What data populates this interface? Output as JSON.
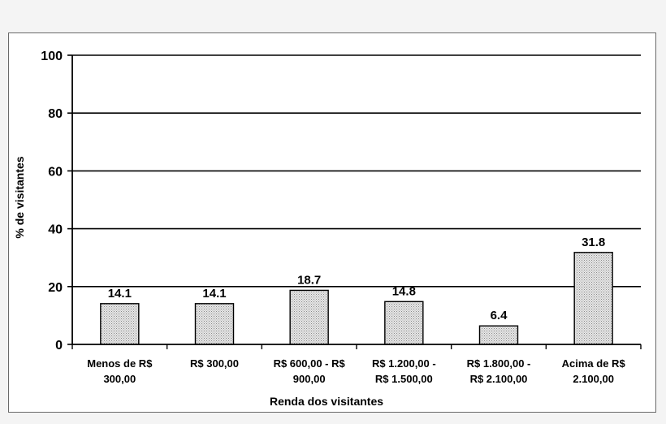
{
  "chart_data": {
    "type": "bar",
    "title": "",
    "xlabel": "Renda dos visitantes",
    "ylabel": "% de visitantes",
    "ylim": [
      0,
      100
    ],
    "yticks": [
      0,
      20,
      40,
      60,
      80,
      100
    ],
    "grid": true,
    "legend": "none",
    "categories": [
      [
        "Menos de R$",
        "300,00"
      ],
      [
        "R$ 300,00"
      ],
      [
        "R$ 600,00 - R$",
        "900,00"
      ],
      [
        "R$ 1.200,00 -",
        "R$ 1.500,00"
      ],
      [
        "R$ 1.800,00 -",
        "R$ 2.100,00"
      ],
      [
        "Acima de R$",
        "2.100,00"
      ]
    ],
    "values": [
      14.1,
      14.1,
      18.7,
      14.8,
      6.4,
      31.8
    ],
    "data_labels": [
      "14.1",
      "14.1",
      "18.7",
      "14.8",
      "6.4",
      "31.8"
    ],
    "colors": {
      "bar_fill": "#d8d8d8",
      "bar_stroke": "#000000",
      "grid": "#000000"
    }
  }
}
